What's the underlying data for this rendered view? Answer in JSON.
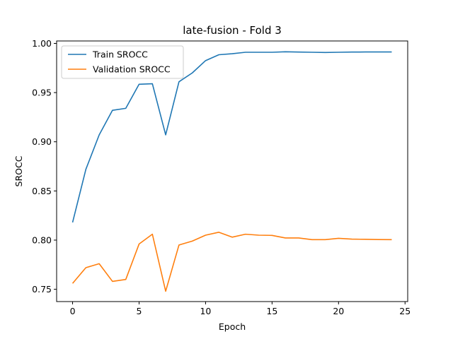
{
  "chart_data": {
    "type": "line",
    "title": "late-fusion - Fold 3",
    "xlabel": "Epoch",
    "ylabel": "SROCC",
    "xlim": [
      -1.2,
      25.2
    ],
    "ylim": [
      0.7375,
      1.0025
    ],
    "xticks": [
      0,
      5,
      10,
      15,
      20,
      25
    ],
    "xtick_labels": [
      "0",
      "5",
      "10",
      "15",
      "20",
      "25"
    ],
    "yticks": [
      0.75,
      0.8,
      0.85,
      0.9,
      0.95,
      1.0
    ],
    "ytick_labels": [
      "0.75",
      "0.80",
      "0.85",
      "0.90",
      "0.95",
      "1.00"
    ],
    "grid": false,
    "legend_position": "top-left",
    "x": [
      0,
      1,
      2,
      3,
      4,
      5,
      6,
      7,
      8,
      9,
      10,
      11,
      12,
      13,
      14,
      15,
      16,
      17,
      18,
      19,
      20,
      21,
      22,
      23,
      24
    ],
    "series": [
      {
        "name": "Train SROCC",
        "color": "#1f77b4",
        "values": [
          0.818,
          0.872,
          0.907,
          0.932,
          0.934,
          0.9585,
          0.959,
          0.907,
          0.961,
          0.97,
          0.9825,
          0.9885,
          0.9895,
          0.991,
          0.991,
          0.991,
          0.9915,
          0.9912,
          0.991,
          0.9908,
          0.991,
          0.9912,
          0.9913,
          0.9913,
          0.9913
        ]
      },
      {
        "name": "Validation SROCC",
        "color": "#ff7f0e",
        "values": [
          0.756,
          0.772,
          0.776,
          0.758,
          0.76,
          0.796,
          0.806,
          0.748,
          0.795,
          0.799,
          0.805,
          0.808,
          0.803,
          0.806,
          0.805,
          0.8048,
          0.8022,
          0.8022,
          0.8005,
          0.8005,
          0.8018,
          0.801,
          0.8008,
          0.8006,
          0.8005
        ]
      }
    ]
  }
}
